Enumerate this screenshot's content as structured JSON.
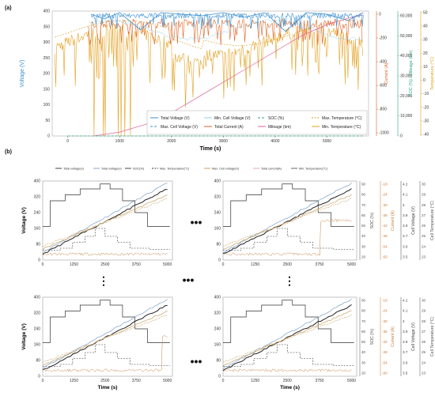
{
  "panel_labels": [
    "(a)",
    "(b)"
  ],
  "ellipsis": "•••",
  "vellipsis": "⋮",
  "chart_data": [
    {
      "type": "line",
      "panel": "(a)",
      "xlabel": "Time (s)",
      "xticks": [
        0,
        1000,
        2000,
        3000,
        4000,
        5000
      ],
      "xlim": [
        -300,
        5800
      ],
      "axes": [
        {
          "label": "Voltage (V)",
          "side": "left",
          "ticks": [
            0,
            50,
            100,
            150,
            200,
            250,
            300,
            350,
            400
          ],
          "range": [
            0,
            400
          ],
          "color": "#3a8fd0"
        },
        {
          "label": "Current (A)",
          "side": "right",
          "ticks": [
            0,
            -200,
            -400,
            -600,
            -800,
            -1000
          ],
          "range": [
            -1000,
            80
          ],
          "color": "#e0601e"
        },
        {
          "label": "SOC (%) / Mileage (km)",
          "side": "right",
          "ticks": [
            "0",
            "10,000",
            "20,000",
            "30,000",
            "40,000",
            "50,000",
            "60,000"
          ],
          "range": [
            0,
            65000
          ],
          "color": "#2aa87a"
        },
        {
          "label": "Temperature (°C)",
          "side": "right",
          "ticks": [
            50,
            40,
            30,
            20,
            10,
            0,
            -10,
            -20,
            -30,
            -40
          ],
          "range": [
            -40,
            55
          ],
          "color": "#e3a020"
        }
      ],
      "legend": [
        "Total Voltage (V)",
        "Max. Cell Voltage (V)",
        "Min. Cell Voltage (V)",
        "Total Current (A)",
        "SOC (%)",
        "Mileage (km)",
        "Max. Temperature (°C)",
        "Min. Temperature (°C)"
      ],
      "legend_position": "bottom-right",
      "series": [
        {
          "name": "Total Voltage (V)",
          "color": "#3a8fd0",
          "style": "solid",
          "x": [
            450,
            700,
            1000,
            1400,
            1800,
            2200,
            2600,
            3000,
            3400,
            3800,
            4200,
            4600,
            5000,
            5400,
            5700
          ],
          "y": [
            390,
            375,
            395,
            340,
            395,
            390,
            385,
            395,
            380,
            395,
            335,
            395,
            390,
            370,
            395
          ]
        },
        {
          "name": "Mileage (km)",
          "color": "#e0609a",
          "style": "solid",
          "x": [
            500,
            1000,
            1500,
            2000,
            2500,
            3000,
            3500,
            4000,
            4500,
            5000,
            5500,
            5700
          ],
          "y": [
            0,
            2000,
            6000,
            12000,
            20000,
            28000,
            36000,
            44000,
            52000,
            58000,
            62000,
            63000
          ]
        },
        {
          "name": "SOC (%)",
          "color": "#2aa87a",
          "style": "dashed",
          "x": [
            0,
            5700
          ],
          "y": [
            0,
            0
          ]
        }
      ]
    },
    {
      "type": "line",
      "panel": "(b)-1",
      "xlabel": "",
      "ylabel": "Voltage (V)",
      "xticks": [
        0,
        1250,
        2500,
        3750,
        5000
      ],
      "yticks": [
        0,
        80,
        160,
        240,
        320,
        400
      ],
      "legend": [
        "Total voltage(v)",
        "Total voltage(v)",
        "SOC(%)",
        "Max. Temperature(°C)",
        "Max. Cell voltage(V)",
        "Total current(A)",
        "Min. Temperature(°C)"
      ]
    },
    {
      "type": "line",
      "panel": "(b)-2",
      "xticks": [
        0,
        1250,
        2500,
        3750,
        5000
      ],
      "yticks": [
        0,
        80,
        160,
        240,
        320,
        400
      ],
      "right_axes": [
        {
          "label": "SOC (%)",
          "ticks": [
            20,
            30,
            40,
            50,
            60,
            70,
            80,
            90
          ]
        },
        {
          "label": "Current (A)",
          "ticks": [
            -60,
            -54,
            -48,
            -42,
            -36,
            -30,
            -24,
            -18
          ]
        },
        {
          "label": "Cell Voltage (V)",
          "ticks": [
            3.5,
            3.6,
            3.7,
            3.8,
            3.9,
            4.0,
            4.1,
            4.2
          ]
        },
        {
          "label": "Cell Temperature (°C)",
          "ticks": [
            23,
            24,
            25,
            26,
            27,
            28,
            29,
            30
          ]
        }
      ]
    },
    {
      "type": "line",
      "panel": "(b)-3",
      "xlabel": "Time (s)",
      "ylabel": "Voltage (V)",
      "xticks": [
        0,
        1250,
        2500,
        3750,
        5000
      ],
      "yticks": [
        0,
        80,
        160,
        240,
        320,
        400
      ]
    },
    {
      "type": "line",
      "panel": "(b)-4",
      "xlabel": "Time (s)",
      "xticks": [
        0,
        1250,
        2500,
        3750,
        5000
      ],
      "yticks": [
        0,
        80,
        160,
        240,
        320,
        400
      ],
      "right_axes": [
        {
          "label": "SOC (%)",
          "ticks": [
            20,
            30,
            40,
            50,
            60,
            70,
            80,
            90
          ]
        },
        {
          "label": "Current (A)",
          "ticks": [
            -60,
            -54,
            -48,
            -42,
            -36,
            -30,
            -24,
            -18
          ]
        },
        {
          "label": "Cell Voltage (V)",
          "ticks": [
            3.5,
            3.6,
            3.7,
            3.8,
            3.9,
            4.0,
            4.1,
            4.2
          ]
        },
        {
          "label": "Cell Temperature (°C)",
          "ticks": [
            23,
            24,
            25,
            26,
            27,
            28,
            29,
            30
          ]
        }
      ]
    }
  ]
}
